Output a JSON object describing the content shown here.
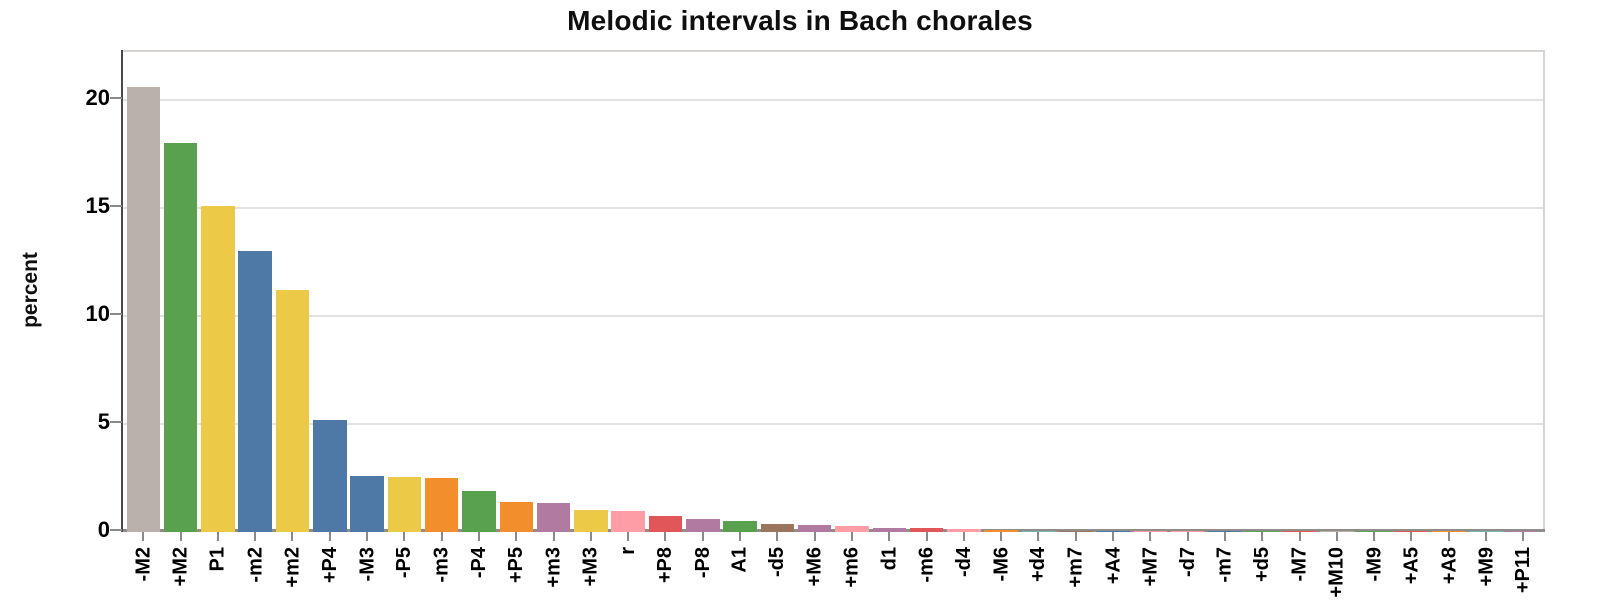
{
  "chart_data": {
    "type": "bar",
    "title": "Melodic intervals in Bach chorales",
    "xlabel": "",
    "ylabel": "percent",
    "ylim": [
      0,
      22.2
    ],
    "yticks": [
      0,
      5,
      10,
      15,
      20
    ],
    "grid": true,
    "legend": "none",
    "categories": [
      "-M2",
      "+M2",
      "P1",
      "-m2",
      "+m2",
      "+P4",
      "-M3",
      "-P5",
      "-m3",
      "-P4",
      "+P5",
      "+m3",
      "+M3",
      "r",
      "+P8",
      "-P8",
      "A1",
      "-d5",
      "+M6",
      "+m6",
      "d1",
      "-m6",
      "-d4",
      "-M6",
      "+d4",
      "+m7",
      "+A4",
      "+M7",
      "-d7",
      "-m7",
      "+d5",
      "-M7",
      "+M10",
      "-M9",
      "+A5",
      "+A8",
      "+M9",
      "+P11"
    ],
    "values": [
      20.6,
      18.0,
      15.1,
      13.0,
      11.2,
      5.2,
      2.6,
      2.55,
      2.5,
      1.9,
      1.4,
      1.35,
      1.0,
      0.95,
      0.75,
      0.6,
      0.5,
      0.35,
      0.32,
      0.3,
      0.18,
      0.18,
      0.12,
      0.1,
      0.07,
      0.07,
      0.05,
      0.04,
      0.03,
      0.03,
      0.03,
      0.02,
      0.02,
      0.02,
      0.015,
      0.015,
      0.01,
      0.01
    ],
    "bar_colors": [
      "#bab0ac",
      "#59a14f",
      "#edc948",
      "#4e79a7",
      "#edc948",
      "#4e79a7",
      "#4e79a7",
      "#edc948",
      "#f28e2b",
      "#59a14f",
      "#f28e2b",
      "#b07aa1",
      "#edc948",
      "#ff9da7",
      "#e15759",
      "#b07aa1",
      "#59a14f",
      "#9c755f",
      "#b07aa1",
      "#ff9da7",
      "#b07aa1",
      "#e15759",
      "#ff9da7",
      "#f28e2b",
      "#76b7b2",
      "#9c755f",
      "#4e79a7",
      "#ff9da7",
      "#ff9da7",
      "#4e79a7",
      "#59a14f",
      "#e15759",
      "#bab0ac",
      "#59a14f",
      "#e15759",
      "#f28e2b",
      "#76b7b2",
      "#b07aa1"
    ],
    "palette": {
      "blue": "#4e79a7",
      "orange": "#f28e2b",
      "red": "#e15759",
      "teal": "#76b7b2",
      "green": "#59a14f",
      "yellow": "#edc948",
      "purple": "#b07aa1",
      "pink": "#ff9da7",
      "brown": "#9c755f",
      "gray": "#bab0ac"
    },
    "axis_colors": {
      "y_axis": "#4a4a4a",
      "x_axis": "#8f8c8a",
      "grid": "#e4e2e0",
      "frame": "#d6d3d0"
    }
  }
}
